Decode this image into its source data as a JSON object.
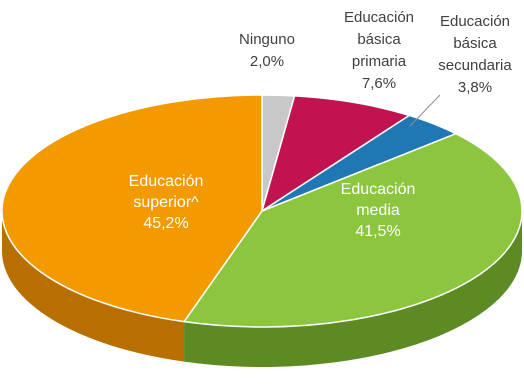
{
  "chart_data": {
    "type": "pie",
    "style": "3d",
    "slices": [
      {
        "label_lines": [
          "Ninguno"
        ],
        "value_label": "2,0%",
        "value": 2.0,
        "color": "#c8c8c8",
        "side_color": "#9a9a9a"
      },
      {
        "label_lines": [
          "Educación",
          "básica",
          "primaria"
        ],
        "value_label": "7,6%",
        "value": 7.6,
        "color": "#c0134f",
        "side_color": "#8a0d38"
      },
      {
        "label_lines": [
          "Educación",
          "básica",
          "secundaria"
        ],
        "value_label": "3,8%",
        "value": 3.8,
        "color": "#1f77b4",
        "side_color": "#155987"
      },
      {
        "label_lines": [
          "Educación",
          "media"
        ],
        "value_label": "41,5%",
        "value": 41.5,
        "color": "#8cc63f",
        "side_color": "#5d8a23"
      },
      {
        "label_lines": [
          "Educación",
          "superior^"
        ],
        "value_label": "45,2%",
        "value": 45.2,
        "color": "#f29a00",
        "side_color": "#b86f00"
      }
    ]
  }
}
